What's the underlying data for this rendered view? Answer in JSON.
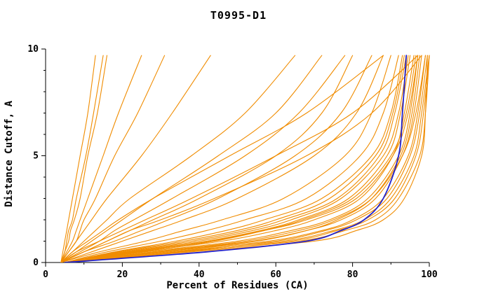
{
  "chart_data": {
    "type": "line",
    "title": "T0995-D1",
    "x_axis": {
      "label": "Percent of Residues (CA)",
      "ticks": [
        0,
        20,
        40,
        60,
        80,
        100
      ],
      "minor_ticks": [
        10,
        30,
        50,
        70,
        90
      ],
      "range": [
        0,
        100
      ]
    },
    "y_axis": {
      "label": "Distance Cutoff, A",
      "ticks": [
        0,
        5,
        10
      ],
      "minor_ticks": [
        1,
        2,
        3,
        4,
        6,
        7,
        8,
        9
      ],
      "range": [
        0,
        10
      ]
    },
    "colors": {
      "model_line": "#F08C00",
      "highlight_line": "#2222CC",
      "axis": "#000000"
    },
    "y_grid": [
      0,
      0.5,
      1,
      1.5,
      2,
      3,
      5,
      7,
      9.7
    ],
    "series": [
      {
        "x": [
          4,
          4.5,
          5,
          5.5,
          6,
          7,
          9,
          11,
          13
        ]
      },
      {
        "x": [
          4,
          5,
          5.5,
          6,
          7,
          8,
          10.5,
          12.5,
          15
        ]
      },
      {
        "x": [
          4,
          5,
          6,
          6.5,
          7.5,
          9,
          11,
          13.5,
          16
        ]
      },
      {
        "x": [
          4,
          5.5,
          7,
          8,
          9,
          11,
          15,
          19,
          25
        ]
      },
      {
        "x": [
          4,
          6,
          8,
          9,
          10,
          13,
          18,
          24,
          31
        ]
      },
      {
        "x": [
          4,
          6,
          8,
          10,
          12,
          16,
          25,
          33,
          43
        ]
      },
      {
        "x": [
          4,
          7,
          10,
          13,
          16,
          22,
          38,
          52,
          65
        ]
      },
      {
        "x": [
          4,
          8,
          12,
          16,
          20,
          28,
          45,
          60,
          72
        ]
      },
      {
        "x": [
          4,
          9,
          14,
          18,
          23,
          33,
          52,
          66,
          78
        ]
      },
      {
        "x": [
          4,
          10,
          16,
          22,
          28,
          40,
          60,
          72,
          80
        ]
      },
      {
        "x": [
          4,
          10,
          18,
          25,
          32,
          45,
          65,
          77,
          85
        ]
      },
      {
        "x": [
          4,
          12,
          20,
          28,
          36,
          50,
          70,
          81,
          88
        ]
      },
      {
        "x": [
          4,
          8,
          14,
          20,
          26,
          38,
          60,
          80,
          97
        ]
      },
      {
        "x": [
          4,
          7,
          11,
          15,
          19,
          28,
          48,
          68,
          88
        ]
      },
      {
        "x": [
          4,
          10,
          16,
          22,
          30,
          44,
          68,
          85,
          98
        ]
      },
      {
        "x": [
          4,
          14,
          26,
          36,
          46,
          62,
          78,
          85,
          90
        ]
      },
      {
        "x": [
          5,
          16,
          30,
          42,
          52,
          68,
          82,
          88,
          92
        ]
      },
      {
        "x": [
          5,
          18,
          34,
          47,
          57,
          72,
          85,
          90,
          93
        ]
      },
      {
        "x": [
          5,
          20,
          38,
          52,
          62,
          76,
          87,
          91,
          94
        ]
      },
      {
        "x": [
          5,
          22,
          42,
          56,
          66,
          79,
          89,
          92.5,
          95
        ]
      },
      {
        "x": [
          5,
          24,
          46,
          60,
          70,
          82,
          90.5,
          93.5,
          96
        ]
      },
      {
        "x": [
          5,
          26,
          50,
          64,
          74,
          84,
          92,
          95,
          97
        ]
      },
      {
        "x": [
          5,
          28,
          54,
          68,
          77,
          86,
          93,
          96,
          98
        ]
      },
      {
        "x": [
          5,
          30,
          58,
          72,
          80,
          88,
          94.5,
          97,
          99
        ]
      },
      {
        "x": [
          5,
          32,
          62,
          75,
          83,
          90,
          96,
          98,
          100
        ]
      },
      {
        "x": [
          5,
          35,
          66,
          78,
          86,
          92,
          97.5,
          99,
          100
        ]
      },
      {
        "x": [
          5,
          38,
          70,
          81,
          88,
          93.5,
          98,
          99,
          99.5
        ]
      },
      {
        "x": [
          6,
          30,
          55,
          68,
          76,
          85,
          92.5,
          95.5,
          97.5
        ]
      },
      {
        "x": [
          6,
          34,
          60,
          73,
          81,
          89,
          95,
          97.5,
          99.5
        ]
      },
      {
        "x": [
          5,
          25,
          44,
          57,
          67,
          80,
          90,
          94,
          96.5
        ]
      },
      {
        "x": [
          5,
          21,
          40,
          54,
          64,
          77,
          88,
          92,
          94.5
        ]
      },
      {
        "x": [
          6,
          28,
          52,
          66,
          75,
          85,
          93,
          96.5,
          99
        ]
      },
      {
        "x": [
          5,
          19,
          36,
          50,
          60,
          74,
          86,
          90.5,
          93.5
        ]
      },
      {
        "x": [
          6,
          36,
          64,
          76,
          84,
          91,
          96.5,
          98.5,
          100
        ]
      },
      {
        "x": [
          5,
          23,
          43,
          57,
          68,
          81,
          90.5,
          94.5,
          97
        ]
      }
    ],
    "highlight_series": {
      "x": [
        5,
        42,
        68,
        77,
        83,
        88,
        92,
        93,
        94
      ]
    }
  }
}
